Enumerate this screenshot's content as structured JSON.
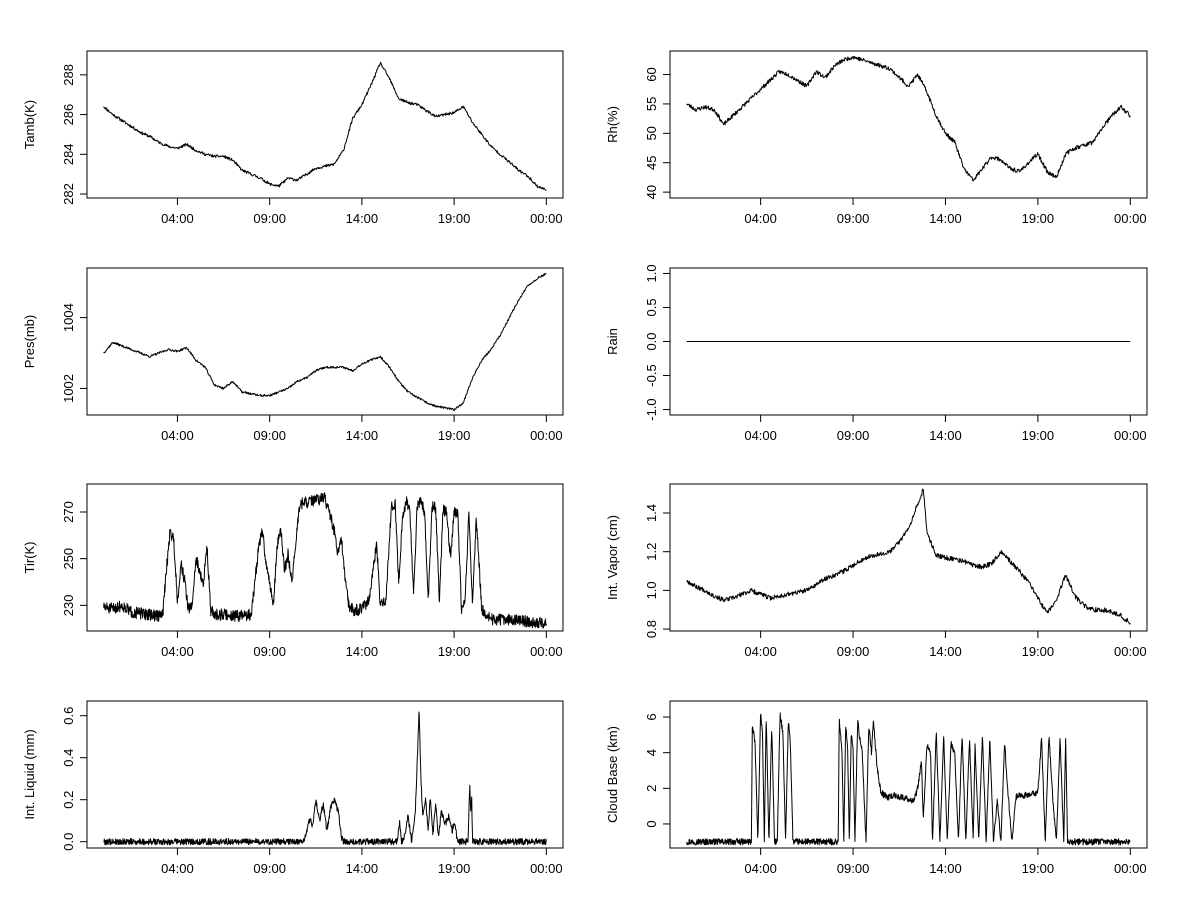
{
  "figure": {
    "x_tick_labels": [
      "04:00",
      "09:00",
      "14:00",
      "19:00",
      "00:00"
    ],
    "x_tick_hours": [
      4,
      9,
      14,
      19,
      24
    ],
    "x_range_hours": [
      0,
      24
    ],
    "line_color": "#000000",
    "background_color": "#ffffff"
  },
  "chart_data": [
    {
      "id": "tamb",
      "type": "line",
      "ylabel": "Tamb(K)",
      "ylim": [
        281.8,
        289.2
      ],
      "yticks": [
        282,
        284,
        286,
        288
      ],
      "ytick_labels": [
        "282",
        "284",
        "286",
        "288"
      ],
      "x_hours": [
        0,
        0.5,
        1,
        1.5,
        2,
        2.5,
        3,
        3.5,
        4,
        4.5,
        5,
        5.5,
        6,
        6.5,
        7,
        7.5,
        8,
        8.5,
        9,
        9.5,
        10,
        10.5,
        11,
        11.5,
        12,
        12.5,
        13,
        13.5,
        14,
        14.5,
        15,
        15.5,
        16,
        16.5,
        17,
        17.5,
        18,
        18.5,
        19,
        19.5,
        20,
        20.5,
        21,
        21.5,
        22,
        22.5,
        23,
        23.5,
        24
      ],
      "values": [
        286.4,
        286.0,
        285.7,
        285.4,
        285.1,
        284.9,
        284.6,
        284.4,
        284.3,
        284.5,
        284.2,
        284.0,
        283.9,
        283.9,
        283.7,
        283.2,
        283.0,
        282.8,
        282.5,
        282.4,
        282.8,
        282.7,
        283.0,
        283.3,
        283.4,
        283.5,
        284.2,
        285.8,
        286.5,
        287.5,
        288.6,
        287.8,
        286.8,
        286.6,
        286.5,
        286.2,
        285.9,
        286.0,
        286.1,
        286.4,
        285.6,
        285.0,
        284.4,
        284.0,
        283.6,
        283.2,
        282.9,
        282.4,
        282.2
      ],
      "noise": 0.07,
      "seed": 11,
      "dense": false
    },
    {
      "id": "rh",
      "type": "line",
      "ylabel": "Rh(%)",
      "ylim": [
        39,
        64
      ],
      "yticks": [
        40,
        45,
        50,
        55,
        60
      ],
      "ytick_labels": [
        "40",
        "45",
        "50",
        "55",
        "60"
      ],
      "x_hours": [
        0,
        0.5,
        1,
        1.5,
        2,
        2.5,
        3,
        3.5,
        4,
        4.5,
        5,
        5.5,
        6,
        6.5,
        7,
        7.5,
        8,
        8.5,
        9,
        9.5,
        10,
        10.5,
        11,
        11.5,
        12,
        12.5,
        13,
        13.5,
        14,
        14.5,
        15,
        15.5,
        16,
        16.5,
        17,
        17.5,
        18,
        18.5,
        19,
        19.5,
        20,
        20.5,
        21,
        21.5,
        22,
        22.5,
        23,
        23.5,
        24
      ],
      "values": [
        55.0,
        54.0,
        54.5,
        54.0,
        51.5,
        53.0,
        54.5,
        56.0,
        57.5,
        59.0,
        60.5,
        60.0,
        59.0,
        58.0,
        60.5,
        59.5,
        61.5,
        62.5,
        63.0,
        62.5,
        62.0,
        61.5,
        61.0,
        59.5,
        58.0,
        60.0,
        57.0,
        53.0,
        50.0,
        48.5,
        44.0,
        42.0,
        44.0,
        46.0,
        45.5,
        44.0,
        43.5,
        45.0,
        46.5,
        43.5,
        42.5,
        46.5,
        47.5,
        48.0,
        48.5,
        51.0,
        53.0,
        54.5,
        53.0
      ],
      "noise": 0.35,
      "seed": 23,
      "dense": false
    },
    {
      "id": "pres",
      "type": "line",
      "ylabel": "Pres(mb)",
      "ylim": [
        1001.25,
        1005.4
      ],
      "yticks": [
        1002,
        1004
      ],
      "ytick_labels": [
        "1002",
        "1004"
      ],
      "x_hours": [
        0,
        0.5,
        1,
        1.5,
        2,
        2.5,
        3,
        3.5,
        4,
        4.5,
        5,
        5.5,
        6,
        6.5,
        7,
        7.5,
        8,
        8.5,
        9,
        9.5,
        10,
        10.5,
        11,
        11.5,
        12,
        12.5,
        13,
        13.5,
        14,
        14.5,
        15,
        15.5,
        16,
        16.5,
        17,
        17.5,
        18,
        18.5,
        19,
        19.5,
        20,
        20.5,
        21,
        21.5,
        22,
        22.5,
        23,
        23.5,
        24
      ],
      "values": [
        1003.0,
        1003.3,
        1003.2,
        1003.1,
        1003.0,
        1002.9,
        1003.0,
        1003.1,
        1003.05,
        1003.15,
        1002.8,
        1002.6,
        1002.1,
        1002.0,
        1002.2,
        1001.9,
        1001.85,
        1001.8,
        1001.8,
        1001.9,
        1002.0,
        1002.2,
        1002.3,
        1002.5,
        1002.6,
        1002.6,
        1002.6,
        1002.5,
        1002.7,
        1002.8,
        1002.9,
        1002.6,
        1002.2,
        1001.9,
        1001.75,
        1001.6,
        1001.5,
        1001.45,
        1001.4,
        1001.6,
        1002.3,
        1002.8,
        1003.1,
        1003.5,
        1004.0,
        1004.5,
        1004.9,
        1005.1,
        1005.25
      ],
      "noise": 0.03,
      "seed": 37,
      "dense": false
    },
    {
      "id": "rain",
      "type": "line",
      "ylabel": "Rain",
      "ylim": [
        -1.08,
        1.08
      ],
      "yticks": [
        -1.0,
        -0.5,
        0.0,
        0.5,
        1.0
      ],
      "ytick_labels": [
        "-1.0",
        "-0.5",
        "0.0",
        "0.5",
        "1.0"
      ],
      "x_hours": [
        0,
        24
      ],
      "values": [
        0,
        0
      ],
      "noise": 0,
      "seed": 1,
      "dense": false
    },
    {
      "id": "tir",
      "type": "line",
      "ylabel": "Tir(K)",
      "ylim": [
        219,
        282
      ],
      "yticks": [
        230,
        250,
        270
      ],
      "ytick_labels": [
        "230",
        "250",
        "270"
      ],
      "x_hours": [
        0,
        0.5,
        1,
        1.5,
        2,
        2.5,
        3,
        3.2,
        3.4,
        3.6,
        3.8,
        4.0,
        4.2,
        4.4,
        4.6,
        4.8,
        5.0,
        5.2,
        5.4,
        5.6,
        5.8,
        6.0,
        6.5,
        7,
        7.5,
        8.0,
        8.2,
        8.4,
        8.6,
        8.8,
        9.0,
        9.2,
        9.4,
        9.6,
        9.8,
        10.0,
        10.2,
        10.4,
        10.6,
        10.8,
        11.0,
        11.5,
        12.0,
        12.5,
        12.7,
        12.9,
        13.1,
        13.3,
        13.5,
        13.8,
        14.0,
        14.4,
        14.8,
        15.0,
        15.3,
        15.6,
        15.8,
        16.0,
        16.2,
        16.4,
        16.6,
        16.8,
        17.0,
        17.2,
        17.4,
        17.6,
        17.8,
        18.0,
        18.2,
        18.4,
        18.6,
        18.8,
        19.0,
        19.2,
        19.4,
        19.6,
        19.8,
        20.0,
        20.2,
        20.5,
        21,
        22,
        23,
        24
      ],
      "values": [
        229,
        228.5,
        230,
        227,
        226.5,
        226,
        225.5,
        226,
        245,
        262,
        258,
        232,
        248,
        240,
        228,
        230,
        250,
        245,
        238,
        256,
        228,
        226,
        226,
        225.5,
        225.5,
        226,
        240,
        255,
        262,
        248,
        240,
        230,
        255,
        263,
        245,
        252,
        240,
        255,
        272,
        274,
        274,
        275,
        276,
        262,
        252,
        258,
        240,
        230,
        228,
        228,
        229,
        232,
        256,
        230,
        232,
        272,
        274,
        240,
        268,
        275,
        270,
        235,
        273,
        274,
        270,
        232,
        272,
        272,
        232,
        271,
        270,
        250,
        270,
        270,
        228,
        232,
        270,
        230,
        268,
        228,
        224,
        224,
        223,
        222
      ],
      "noise": 2.5,
      "seed": 51,
      "dense": true
    },
    {
      "id": "vapor",
      "type": "line",
      "ylabel": "Int. Vapor (cm)",
      "ylim": [
        0.79,
        1.55
      ],
      "yticks": [
        0.8,
        1.0,
        1.2,
        1.4
      ],
      "ytick_labels": [
        "0.8",
        "1.0",
        "1.2",
        "1.4"
      ],
      "x_hours": [
        0,
        0.5,
        1,
        1.5,
        2,
        2.5,
        3,
        3.5,
        4,
        4.5,
        5,
        5.5,
        6,
        6.5,
        7,
        7.5,
        8,
        8.5,
        9,
        9.5,
        10,
        10.5,
        11,
        11.5,
        12,
        12.5,
        12.8,
        13,
        13.5,
        14,
        14.5,
        15,
        15.5,
        16,
        16.5,
        17,
        17.5,
        18,
        18.5,
        19,
        19.5,
        20,
        20.5,
        21,
        21.5,
        22,
        22.5,
        23,
        23.5,
        24
      ],
      "values": [
        1.05,
        1.02,
        1.0,
        0.97,
        0.95,
        0.96,
        0.98,
        1.0,
        0.98,
        0.96,
        0.97,
        0.98,
        0.99,
        1.0,
        1.03,
        1.06,
        1.08,
        1.1,
        1.13,
        1.16,
        1.18,
        1.19,
        1.2,
        1.25,
        1.32,
        1.45,
        1.52,
        1.3,
        1.18,
        1.17,
        1.16,
        1.15,
        1.13,
        1.12,
        1.14,
        1.2,
        1.15,
        1.1,
        1.04,
        0.96,
        0.88,
        0.95,
        1.08,
        0.97,
        0.92,
        0.9,
        0.9,
        0.89,
        0.87,
        0.83
      ],
      "noise": 0.012,
      "seed": 67,
      "dense": false
    },
    {
      "id": "liquid",
      "type": "line",
      "ylabel": "Int. Liquid (mm)",
      "ylim": [
        -0.03,
        0.67
      ],
      "yticks": [
        0.0,
        0.2,
        0.4,
        0.6
      ],
      "ytick_labels": [
        "0.0",
        "0.2",
        "0.4",
        "0.6"
      ],
      "x_hours": [
        0,
        10.8,
        11.0,
        11.2,
        11.3,
        11.5,
        11.7,
        11.9,
        12.1,
        12.3,
        12.5,
        12.7,
        12.9,
        13.0,
        15.9,
        16.05,
        16.15,
        16.3,
        16.5,
        16.7,
        16.9,
        17.0,
        17.1,
        17.2,
        17.3,
        17.45,
        17.6,
        17.7,
        17.85,
        18.0,
        18.15,
        18.3,
        18.5,
        18.7,
        18.9,
        19.0,
        19.2,
        19.4,
        19.6,
        19.75,
        19.85,
        19.9,
        19.95,
        20.0,
        24
      ],
      "values": [
        0,
        0,
        0.04,
        0.12,
        0.06,
        0.2,
        0.1,
        0.18,
        0.05,
        0.16,
        0.2,
        0.15,
        0.02,
        0,
        0,
        0.09,
        0,
        0.02,
        0.12,
        0,
        0.15,
        0.38,
        0.63,
        0.3,
        0.12,
        0.2,
        0.05,
        0.22,
        0.03,
        0.18,
        0.02,
        0.15,
        0.08,
        0.12,
        0.05,
        0.1,
        0,
        0,
        0,
        0,
        0.27,
        0.15,
        0.22,
        0,
        0
      ],
      "noise": 0.015,
      "seed": 79,
      "dense": true
    },
    {
      "id": "cloudbase",
      "type": "line",
      "ylabel": "Cloud Base (km)",
      "ylim": [
        -1.35,
        6.9
      ],
      "yticks": [
        0,
        2,
        4,
        6
      ],
      "ytick_labels": [
        "0",
        "2",
        "4",
        "6"
      ],
      "x_hours": [
        0,
        3.5,
        3.55,
        3.7,
        3.85,
        4.0,
        4.1,
        4.2,
        4.3,
        4.45,
        4.6,
        4.75,
        4.9,
        5.05,
        5.2,
        5.35,
        5.5,
        5.6,
        5.75,
        8.2,
        8.25,
        8.4,
        8.5,
        8.6,
        8.7,
        8.8,
        8.9,
        9.0,
        9.1,
        9.25,
        9.4,
        9.5,
        9.7,
        9.85,
        10.0,
        10.1,
        10.3,
        10.5,
        10.7,
        10.9,
        11.2,
        11.6,
        12.0,
        12.3,
        12.5,
        12.7,
        12.8,
        13.0,
        13.2,
        13.3,
        13.5,
        13.7,
        13.9,
        14.1,
        14.3,
        14.5,
        14.7,
        14.9,
        15.1,
        15.3,
        15.5,
        15.6,
        15.8,
        16.0,
        16.2,
        16.4,
        16.6,
        16.8,
        17.0,
        17.2,
        17.4,
        17.6,
        17.8,
        18.0,
        18.5,
        19.0,
        19.2,
        19.4,
        19.6,
        19.8,
        20.0,
        20.2,
        20.4,
        20.5,
        20.6,
        24
      ],
      "values": [
        -1,
        -1,
        5.5,
        4.5,
        -1,
        6.3,
        5.0,
        -1,
        6.0,
        -1,
        5.5,
        -1,
        -1,
        6.1,
        5.2,
        -1,
        5.8,
        4.8,
        -1,
        -1,
        5.9,
        4.0,
        -1,
        5.5,
        4.5,
        -1,
        5.0,
        4.2,
        -1,
        5.8,
        4.5,
        4.0,
        -1,
        5.5,
        4.0,
        5.8,
        3.2,
        1.8,
        1.6,
        1.5,
        1.6,
        1.5,
        1.4,
        1.3,
        2.0,
        3.5,
        0.2,
        4.5,
        3.8,
        -1,
        5.2,
        -1,
        5.0,
        -1,
        4.5,
        4.0,
        -1,
        5.0,
        -1,
        4.8,
        -1,
        4.5,
        -1,
        5.0,
        -1,
        4.8,
        -1,
        1.4,
        -1,
        4.5,
        1.5,
        -1,
        1.5,
        1.6,
        1.6,
        1.8,
        4.8,
        -1,
        5.0,
        1.5,
        -1,
        4.8,
        -1,
        5.0,
        -1,
        -1
      ],
      "noise": 0.18,
      "seed": 97,
      "dense": true
    }
  ]
}
